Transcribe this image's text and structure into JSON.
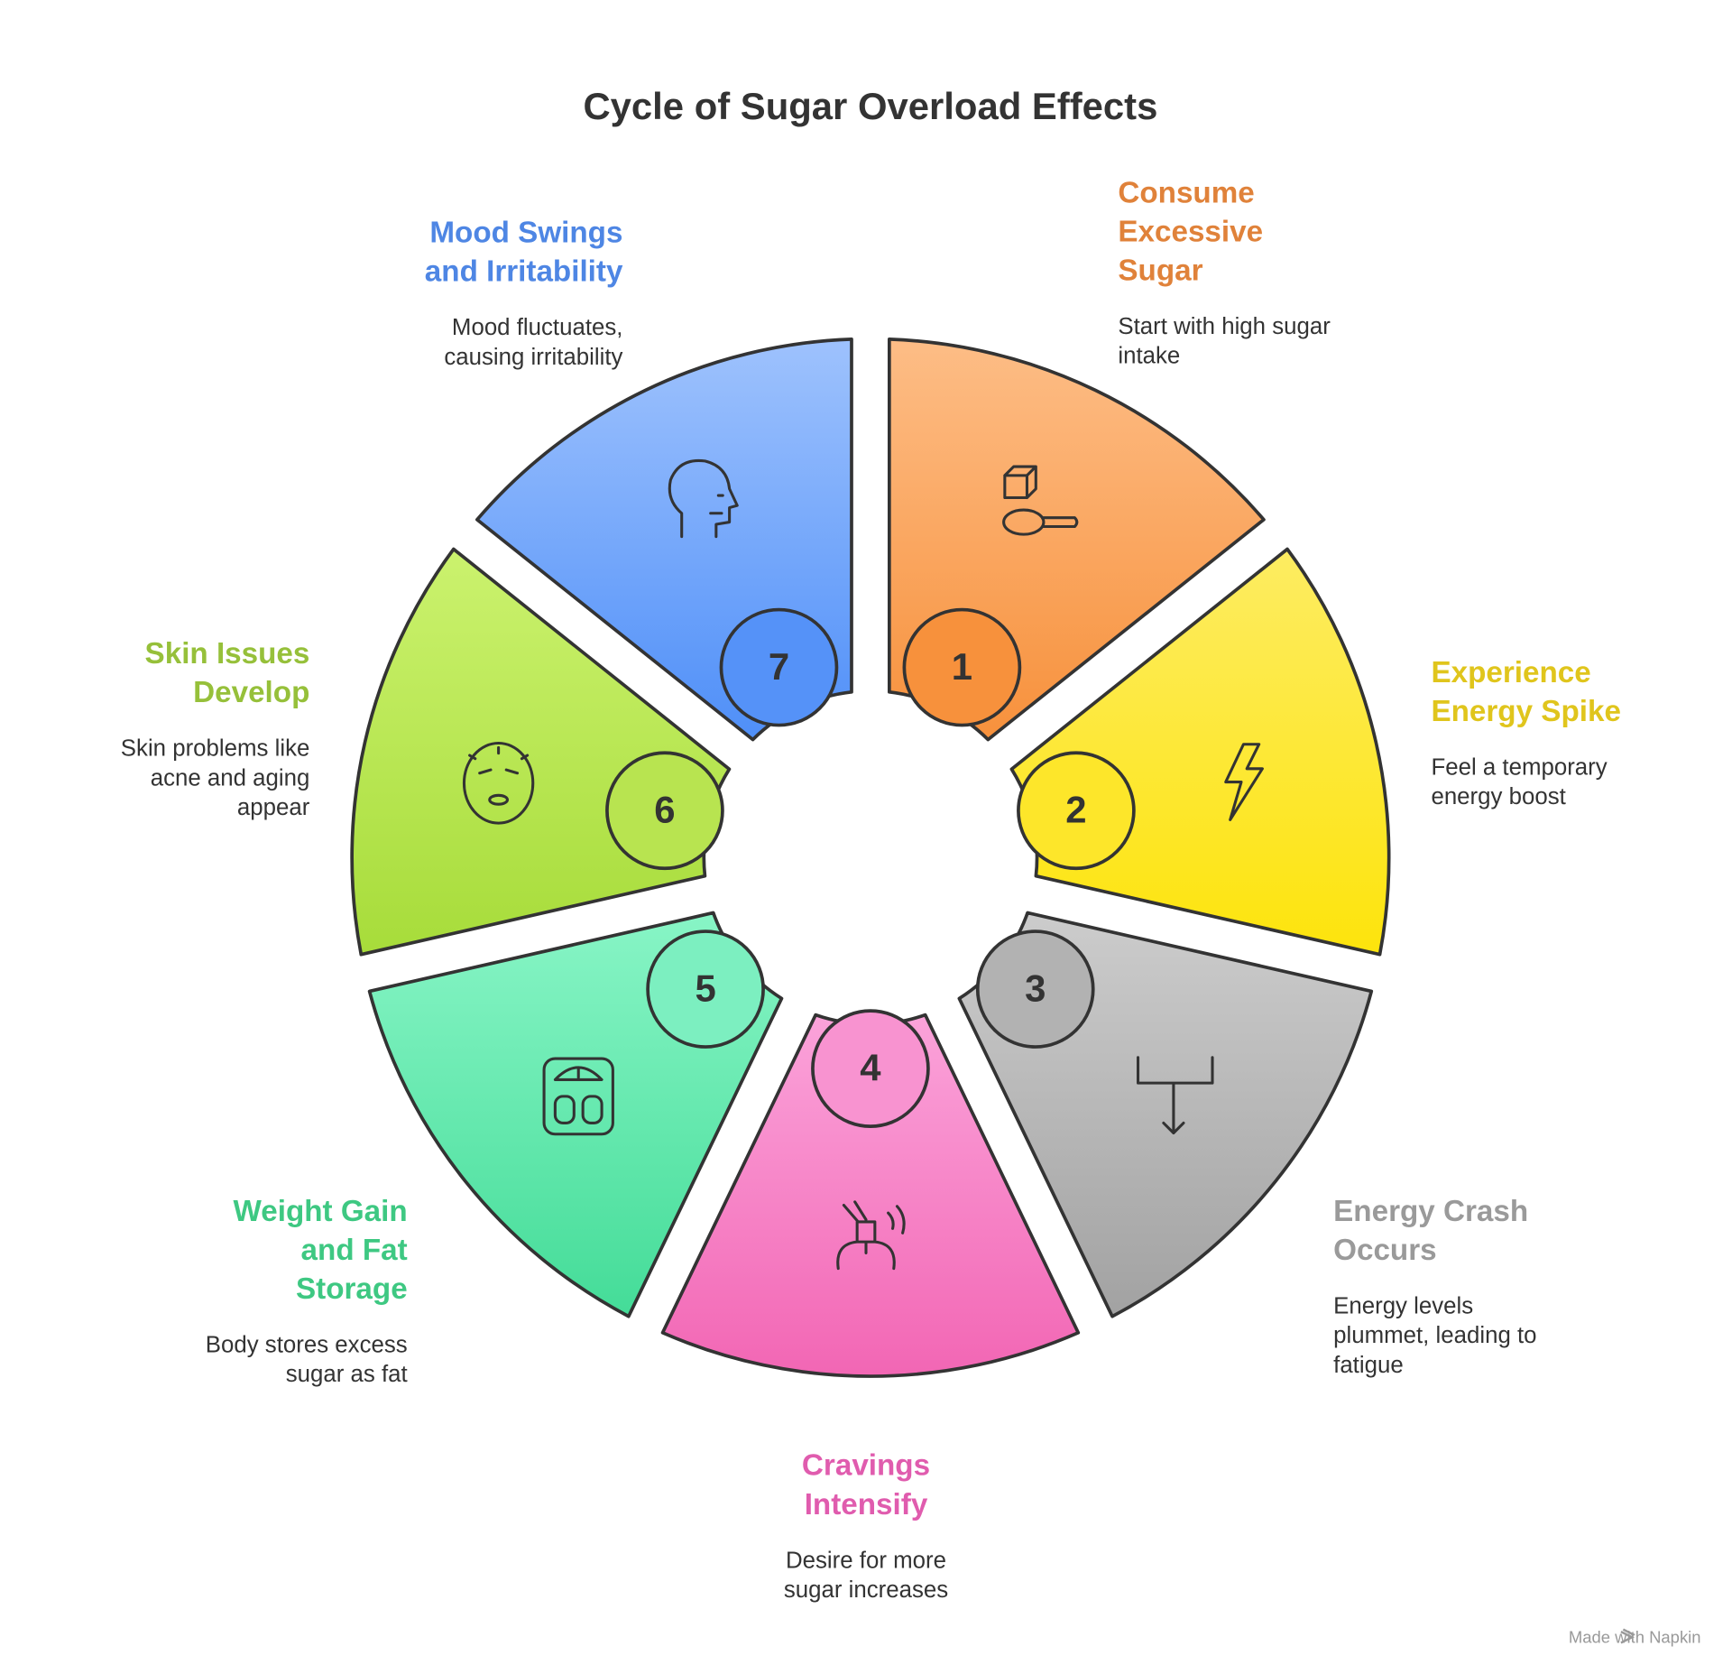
{
  "title": "Cycle of Sugar Overload Effects",
  "steps": [
    {
      "number": 1,
      "title": [
        "Consume",
        "Excessive",
        "Sugar"
      ],
      "description": [
        "Start with high sugar",
        "intake"
      ]
    },
    {
      "number": 2,
      "title": [
        "Experience",
        "Energy Spike"
      ],
      "description": [
        "Feel a temporary",
        "energy boost"
      ]
    },
    {
      "number": 3,
      "title": [
        "Energy Crash",
        "Occurs"
      ],
      "description": [
        "Energy levels",
        "plummet, leading to",
        "fatigue"
      ]
    },
    {
      "number": 4,
      "title": [
        "Cravings",
        "Intensify"
      ],
      "description": [
        "Desire for more",
        "sugar increases"
      ]
    },
    {
      "number": 5,
      "title": [
        "Weight Gain",
        "and Fat",
        "Storage"
      ],
      "description": [
        "Body stores excess",
        "sugar as fat"
      ]
    },
    {
      "number": 6,
      "title": [
        "Skin Issues",
        "Develop"
      ],
      "description": [
        "Skin problems like",
        "acne and aging",
        "appear"
      ]
    },
    {
      "number": 7,
      "title": [
        "Mood Swings",
        "and Irritability"
      ],
      "description": [
        "Mood fluctuates,",
        "causing irritability"
      ]
    }
  ],
  "footer": "Made with Napkin"
}
